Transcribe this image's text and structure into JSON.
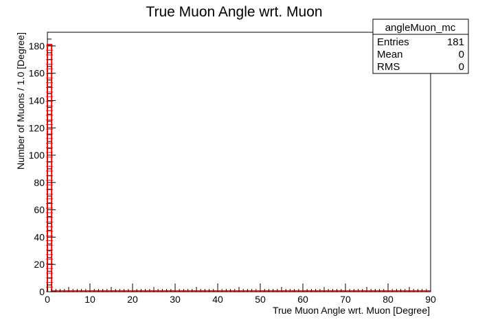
{
  "chart_data": {
    "type": "histogram",
    "title": "True Muon Angle wrt. Muon",
    "xlabel": "True Muon Angle wrt. Muon [Degree]",
    "ylabel": "Number of Muons / 1.0 [Degree]",
    "xlim": [
      0,
      90
    ],
    "ylim": [
      0,
      190
    ],
    "xticks": [
      "0",
      "10",
      "20",
      "30",
      "40",
      "50",
      "60",
      "70",
      "80",
      "90"
    ],
    "yticks": [
      "0",
      "20",
      "40",
      "60",
      "80",
      "100",
      "120",
      "140",
      "160",
      "180"
    ],
    "bin_width": 1.0,
    "bins": [
      {
        "x_low": 0,
        "x_high": 1,
        "count": 181
      }
    ],
    "line_color": "#ff0000",
    "grid": false,
    "stats_box": {
      "name": "angleMuon_mc",
      "placement": "top-right",
      "rows": [
        {
          "label": "Entries",
          "value": "181"
        },
        {
          "label": "Mean",
          "value": "0"
        },
        {
          "label": "RMS",
          "value": "0"
        }
      ]
    }
  }
}
